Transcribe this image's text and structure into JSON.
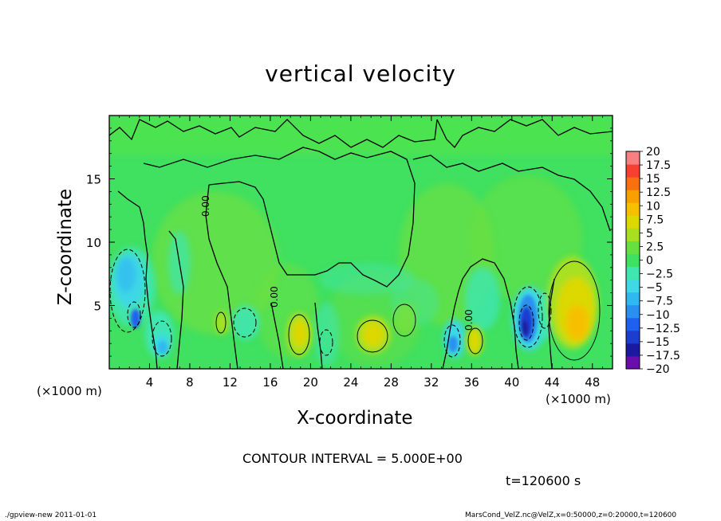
{
  "chart_data": {
    "type": "heatmap",
    "title": "vertical velocity",
    "xlabel": "X-coordinate",
    "ylabel": "Z-coordinate",
    "x_unit_label": "(×1000 m)",
    "xlim": [
      0,
      50
    ],
    "ylim": [
      0,
      20
    ],
    "x_ticks": [
      4,
      8,
      12,
      16,
      20,
      24,
      28,
      32,
      36,
      40,
      44,
      48
    ],
    "y_ticks": [
      5,
      10,
      15
    ],
    "colorbar": {
      "levels": [
        -20,
        -17.5,
        -15,
        -12.5,
        -10,
        -7.5,
        -5,
        -2.5,
        0,
        2.5,
        5,
        7.5,
        10,
        12.5,
        15,
        17.5,
        20
      ],
      "labels": [
        "20",
        "17.5",
        "15",
        "12.5",
        "10",
        "7.5",
        "5",
        "2.5",
        "0",
        "−2.5",
        "−5",
        "−7.5",
        "−10",
        "−12.5",
        "−15",
        "−17.5",
        "−20"
      ],
      "colors": [
        "#6a0dad",
        "#1a1aa0",
        "#1c3dd0",
        "#2060f0",
        "#2a90f0",
        "#32b8f0",
        "#3ed8e6",
        "#40e6b0",
        "#40e060",
        "#66e040",
        "#a8e020",
        "#dcd800",
        "#f6c000",
        "#f8a000",
        "#f87010",
        "#f84030",
        "#f88080"
      ]
    },
    "contour_line_label": "0.00",
    "features": [
      {
        "kind": "downdraft",
        "x": 2.5,
        "z": 6.5,
        "w": -7.5
      },
      {
        "kind": "downdraft",
        "x": 3.2,
        "z": 4.0,
        "w": -15
      },
      {
        "kind": "downdraft",
        "x": 5.3,
        "z": 2.0,
        "w": -10
      },
      {
        "kind": "updraft",
        "x": 11.0,
        "z": 3.5,
        "w": 5
      },
      {
        "kind": "downdraft",
        "x": 13.8,
        "z": 3.8,
        "w": -2.5
      },
      {
        "kind": "updraft",
        "x": 19.0,
        "z": 2.8,
        "w": 7.5
      },
      {
        "kind": "updraft",
        "x": 26.2,
        "z": 2.5,
        "w": 7.5
      },
      {
        "kind": "downdraft",
        "x": 33.8,
        "z": 2.0,
        "w": -10
      },
      {
        "kind": "updraft",
        "x": 36.2,
        "z": 2.3,
        "w": 5
      },
      {
        "kind": "downdraft",
        "x": 41.2,
        "z": 3.5,
        "w": -17.5
      },
      {
        "kind": "updraft",
        "x": 46.5,
        "z": 4.2,
        "w": 10
      }
    ]
  },
  "contour_interval": "CONTOUR INTERVAL = 5.000E+00",
  "time_label": "t=120600 s",
  "footer": {
    "left": "./gpview-new  2011-01-01",
    "right": "MarsCond_VelZ.nc@VelZ,x=0:50000,z=0:20000,t=120600"
  }
}
